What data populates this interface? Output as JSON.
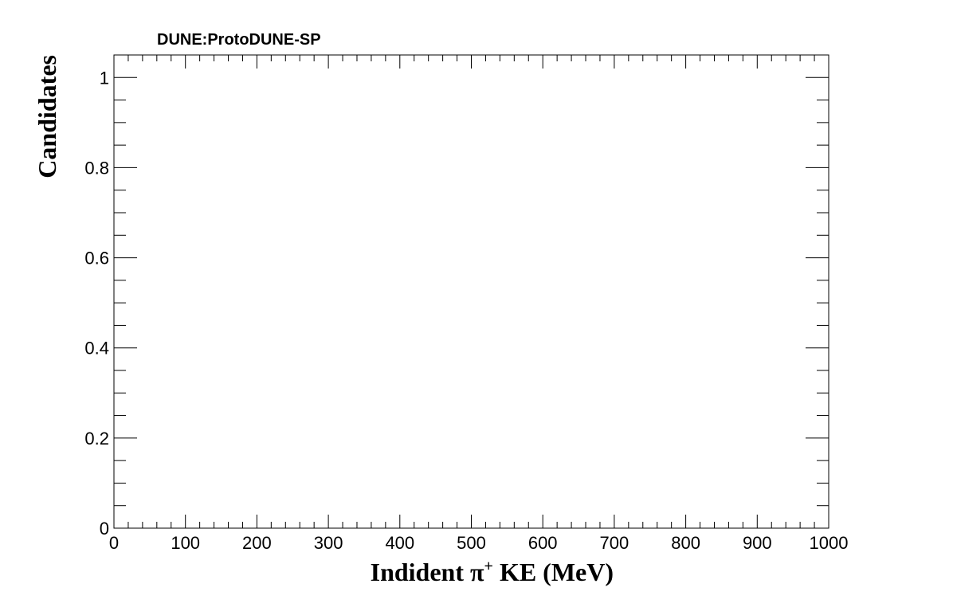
{
  "chart_data": {
    "type": "bar",
    "title": "DUNE:ProtoDUNE-SP",
    "xlabel_main": "Indident  π",
    "xlabel_sup": "+",
    "xlabel_tail": " KE (MeV)",
    "ylabel": "Candidates",
    "xlim": [
      0,
      1000
    ],
    "ylim": [
      0,
      1.05
    ],
    "x_ticks": [
      0,
      100,
      200,
      300,
      400,
      500,
      600,
      700,
      800,
      900,
      1000
    ],
    "x_tick_labels": [
      "0",
      "100",
      "200",
      "300",
      "400",
      "500",
      "600",
      "700",
      "800",
      "900",
      "1000"
    ],
    "y_ticks": [
      0,
      0.2,
      0.4,
      0.6,
      0.8,
      1
    ],
    "y_tick_labels": [
      "0",
      "0.2",
      "0.4",
      "0.6",
      "0.8",
      "1"
    ],
    "x_minor_step": 20,
    "y_minor_step": 0.05,
    "series": [],
    "grid": false
  }
}
